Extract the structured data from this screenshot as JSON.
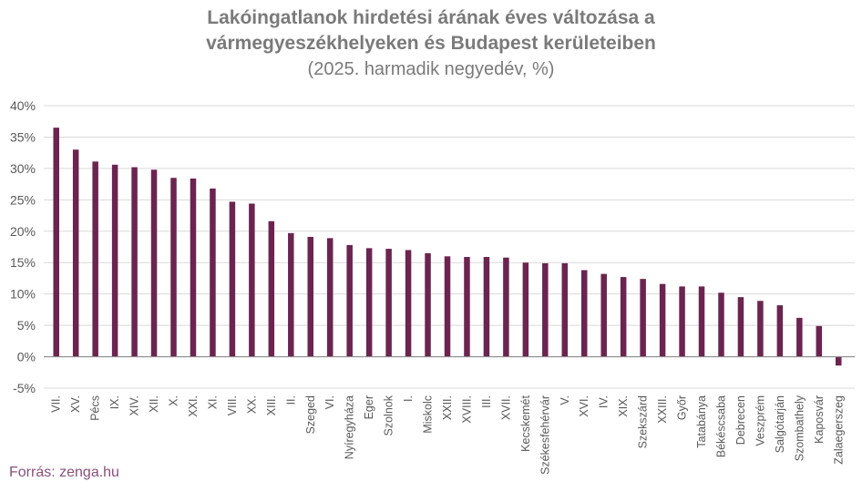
{
  "title": {
    "line1": "Lakóingatlanok hirdetési árának éves változása a",
    "line2": "vármegyeszékhelyeken és Budapest kerületeiben",
    "subtitle": "(2025. harmadik negyedév, %)"
  },
  "source": "Forrás: zenga.hu",
  "colors": {
    "bar": "#6b2450",
    "grid": "#d9d9d9",
    "axis": "#8c8c8c",
    "text": "#595959"
  },
  "chart_data": {
    "type": "bar",
    "title": "Lakóingatlanok hirdetési árának éves változása a vármegyeszékhelyeken és Budapest kerületeiben",
    "subtitle": "(2025. harmadik negyedév, %)",
    "ylim": [
      -5,
      40
    ],
    "yticks": [
      -5,
      0,
      5,
      10,
      15,
      20,
      25,
      30,
      35,
      40
    ],
    "ytick_labels": [
      "-5%",
      "0%",
      "5%",
      "10%",
      "15%",
      "20%",
      "25%",
      "30%",
      "35%",
      "40%"
    ],
    "grid": true,
    "categories": [
      "VII.",
      "XV.",
      "Pécs",
      "IX.",
      "XIV.",
      "XII.",
      "X.",
      "XXI.",
      "XI.",
      "VIII.",
      "XX.",
      "XIII.",
      "II.",
      "Szeged",
      "VI.",
      "Nyíregyháza",
      "Eger",
      "Szolnok",
      "I.",
      "Miskolc",
      "XXII.",
      "XVIII.",
      "III.",
      "XVII.",
      "Kecskemét",
      "Székesfehérvár",
      "V.",
      "XVI.",
      "IV.",
      "XIX.",
      "Szekszárd",
      "XXIII.",
      "Győr",
      "Tatabánya",
      "Békéscsaba",
      "Debrecen",
      "Veszprém",
      "Salgótarján",
      "Szombathely",
      "Kaposvár",
      "Zalaegerszeg"
    ],
    "values": [
      36.5,
      33.0,
      31.1,
      30.6,
      30.2,
      29.8,
      28.5,
      28.4,
      26.8,
      24.7,
      24.4,
      21.6,
      19.7,
      19.1,
      18.9,
      17.8,
      17.3,
      17.2,
      17.0,
      16.5,
      16.0,
      15.9,
      15.9,
      15.8,
      15.0,
      14.9,
      14.9,
      13.8,
      13.2,
      12.7,
      12.4,
      11.6,
      11.2,
      11.2,
      10.2,
      9.5,
      8.9,
      8.2,
      6.2,
      4.9,
      -1.4
    ]
  }
}
